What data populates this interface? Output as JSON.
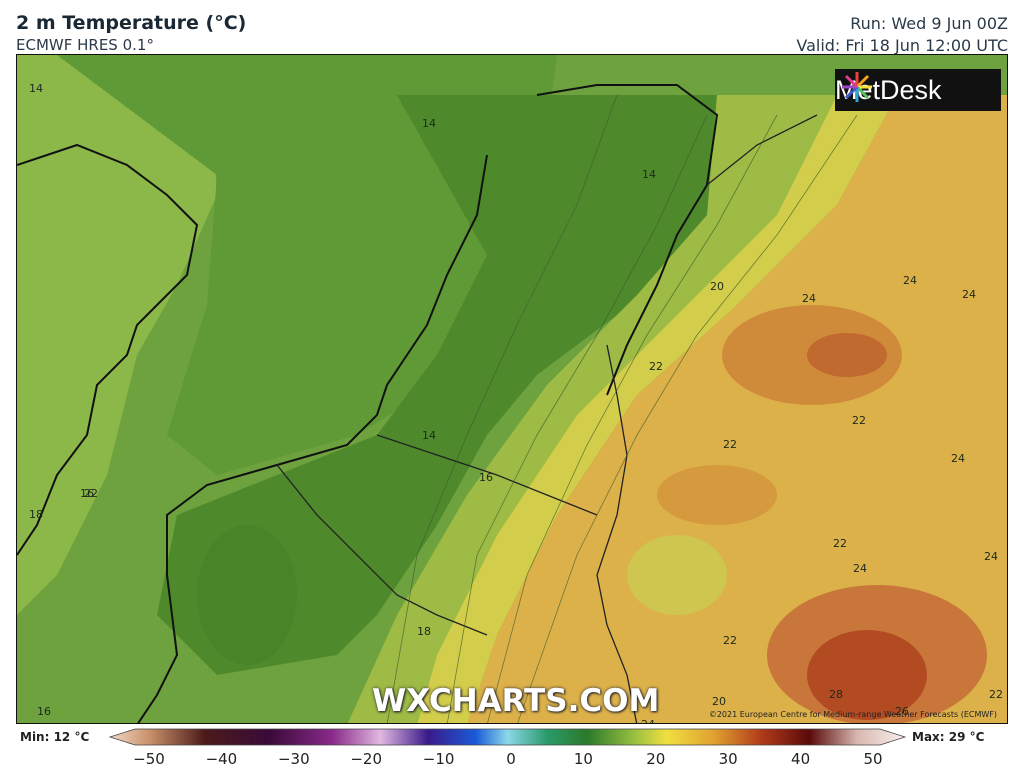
{
  "header": {
    "title": "2 m Temperature (°C)",
    "model": "ECMWF HRES 0.1°",
    "run": "Run: Wed 9 Jun 00Z",
    "valid": "Valid: Fri 18 Jun 12:00 UTC"
  },
  "logo": {
    "text": "MetDesk"
  },
  "watermark": "WXCHARTS.COM",
  "copyright": "©2021 European Centre for Medium-range Weather Forecasts (ECMWF)",
  "map_labels": [
    "14",
    "14",
    "14",
    "14",
    "16",
    "18",
    "20",
    "22",
    "24",
    "24",
    "24",
    "22",
    "22",
    "24",
    "22",
    "24",
    "24",
    "22",
    "18",
    "22",
    "20",
    "16",
    "28",
    "26",
    "24",
    "16",
    "22"
  ],
  "colorbar": {
    "min_label": "Min: 12 °C",
    "max_label": "Max: 29 °C",
    "ticks": [
      "−50",
      "−40",
      "−30",
      "−20",
      "−10",
      "0",
      "10",
      "20",
      "30",
      "40",
      "50"
    ]
  },
  "colors": {
    "sea_green": "#5e9a3a",
    "land_cool": "#508a2e",
    "warm_yellow": "#e6d24a",
    "warm_orange": "#d99a3a",
    "hot": "#b24a22"
  }
}
